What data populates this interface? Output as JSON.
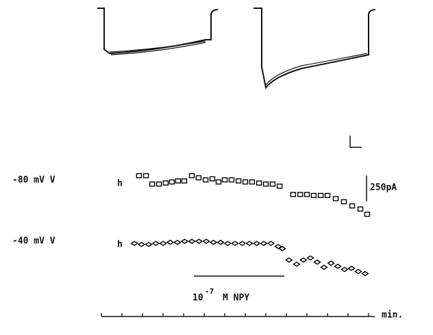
{
  "chart_data": {
    "type": "scatter",
    "x_label": "min.",
    "xlim": [
      0,
      13.3
    ],
    "xticks": [
      0,
      1,
      2,
      3,
      4,
      5,
      6,
      7,
      8,
      9,
      10,
      11,
      12,
      13
    ],
    "ylim": [
      0,
      1250
    ],
    "scale_bar": {
      "value": 250,
      "label": "250pA"
    },
    "annotation": {
      "base": "10",
      "exponent": "-7",
      "text": "M NPY",
      "x": [
        4.5,
        8.9
      ]
    },
    "series": [
      {
        "name": "-80 mV V",
        "name_sub": "h",
        "marker": "square",
        "color": "#000000",
        "x": [
          1.83,
          2.17,
          2.47,
          2.8,
          3.13,
          3.43,
          3.73,
          4.03,
          4.4,
          4.73,
          5.07,
          5.4,
          5.7,
          6.0,
          6.33,
          6.67,
          7.0,
          7.33,
          7.67,
          8.0,
          8.33,
          8.67,
          9.33,
          9.67,
          10.0,
          10.33,
          10.67,
          11.0,
          11.4,
          11.8,
          12.2,
          12.6,
          12.93
        ],
        "values": [
          1010,
          1010,
          930,
          930,
          940,
          950,
          960,
          960,
          1010,
          990,
          970,
          980,
          950,
          970,
          970,
          960,
          950,
          950,
          940,
          930,
          930,
          910,
          830,
          830,
          830,
          820,
          820,
          820,
          790,
          760,
          720,
          690,
          640
        ]
      },
      {
        "name": "-40 mV V",
        "name_sub": "h",
        "marker": "diamond",
        "color": "#000000",
        "x": [
          1.6,
          1.95,
          2.3,
          2.65,
          3.0,
          3.35,
          3.7,
          4.05,
          4.4,
          4.75,
          5.1,
          5.45,
          5.8,
          6.15,
          6.5,
          6.85,
          7.2,
          7.55,
          7.9,
          8.25,
          8.6,
          8.8,
          9.13,
          9.5,
          9.83,
          10.17,
          10.5,
          10.83,
          11.17,
          11.5,
          11.83,
          12.17,
          12.5,
          12.83
        ],
        "values": [
          360,
          350,
          350,
          360,
          360,
          370,
          370,
          380,
          380,
          380,
          380,
          370,
          370,
          360,
          360,
          360,
          360,
          360,
          360,
          360,
          330,
          310,
          200,
          160,
          200,
          220,
          180,
          130,
          170,
          140,
          110,
          120,
          90,
          70
        ]
      }
    ]
  }
}
